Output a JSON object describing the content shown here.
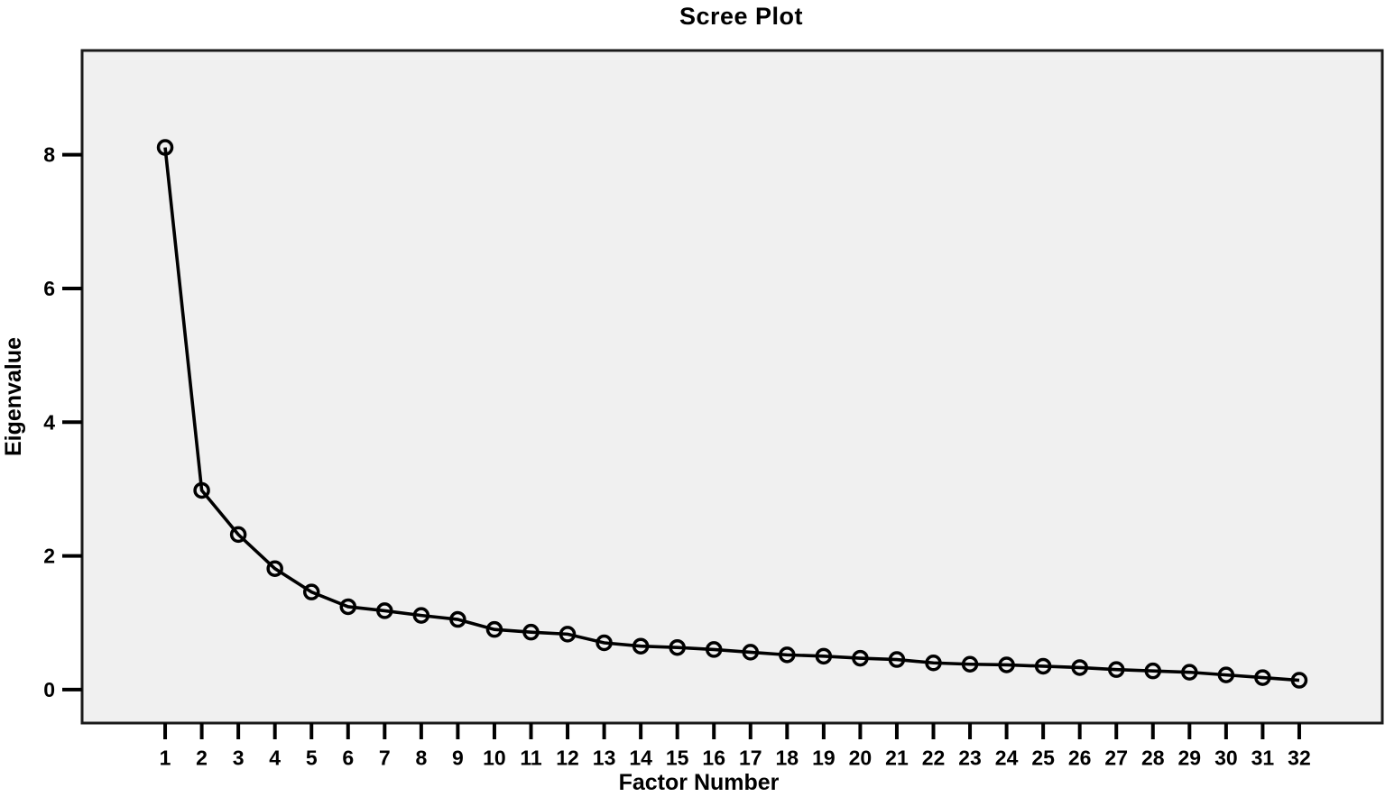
{
  "chart_data": {
    "type": "line",
    "title": "Scree Plot",
    "xlabel": "Factor Number",
    "ylabel": "Eigenvalue",
    "x": [
      1,
      2,
      3,
      4,
      5,
      6,
      7,
      8,
      9,
      10,
      11,
      12,
      13,
      14,
      15,
      16,
      17,
      18,
      19,
      20,
      21,
      22,
      23,
      24,
      25,
      26,
      27,
      28,
      29,
      30,
      31,
      32
    ],
    "y": [
      8.11,
      2.98,
      2.32,
      1.81,
      1.46,
      1.24,
      1.18,
      1.11,
      1.05,
      0.9,
      0.86,
      0.83,
      0.7,
      0.65,
      0.63,
      0.6,
      0.56,
      0.52,
      0.5,
      0.47,
      0.45,
      0.4,
      0.38,
      0.37,
      0.35,
      0.33,
      0.3,
      0.28,
      0.26,
      0.22,
      0.18,
      0.14
    ],
    "x_ticks": [
      1,
      2,
      3,
      4,
      5,
      6,
      7,
      8,
      9,
      10,
      11,
      12,
      13,
      14,
      15,
      16,
      17,
      18,
      19,
      20,
      21,
      22,
      23,
      24,
      25,
      26,
      27,
      28,
      29,
      30,
      31,
      32
    ],
    "y_ticks": [
      0,
      2,
      4,
      6,
      8
    ],
    "xlim": [
      -1.27,
      34.27
    ],
    "ylim": [
      -0.5,
      9.56
    ],
    "grid": "off",
    "legend": "none",
    "marker": "open-circle",
    "line_color": "#000000",
    "marker_color": "#000000",
    "plot_bg_color": "#f0f0f0",
    "frame_color": "#1a1a1a",
    "text_color": "#000000"
  }
}
